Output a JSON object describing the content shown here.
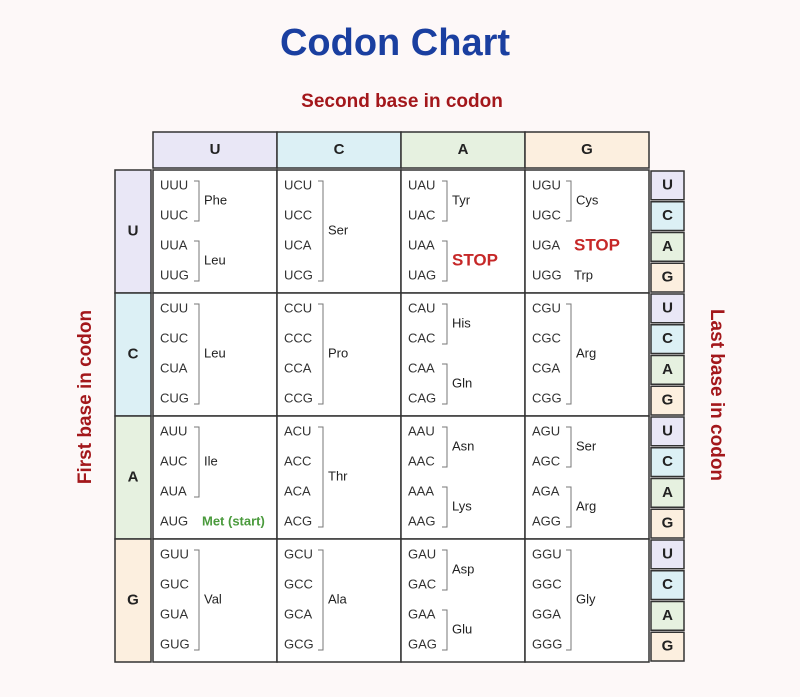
{
  "title": "Codon Chart",
  "second_base_label": "Second base in codon",
  "first_base_label": "First base in codon",
  "last_base_label": "Last base in codon",
  "columns": [
    "U",
    "C",
    "A",
    "G"
  ],
  "rows": [
    "U",
    "C",
    "A",
    "G"
  ],
  "last_bases": [
    [
      "U",
      "C",
      "A",
      "G"
    ],
    [
      "U",
      "C",
      "A",
      "G"
    ],
    [
      "U",
      "C",
      "A",
      "G"
    ],
    [
      "U",
      "C",
      "A",
      "G"
    ]
  ],
  "cells": [
    [
      [
        {
          "label": "Phe",
          "codons": [
            "UUU",
            "UUC"
          ]
        },
        {
          "label": "Leu",
          "codons": [
            "UUA",
            "UUG"
          ]
        }
      ],
      [
        {
          "label": "Ser",
          "codons": [
            "UCU",
            "UCC",
            "UCA",
            "UCG"
          ]
        }
      ],
      [
        {
          "label": "Tyr",
          "codons": [
            "UAU",
            "UAC"
          ]
        },
        {
          "label": "STOP",
          "codons": [
            "UAA",
            "UAG"
          ],
          "color": "#c62828"
        }
      ],
      [
        {
          "label": "Cys",
          "codons": [
            "UGU",
            "UGC"
          ]
        },
        {
          "label": "STOP",
          "codons": [
            "UGA"
          ],
          "color": "#c62828"
        },
        {
          "label": "Trp",
          "codons": [
            "UGG"
          ]
        }
      ]
    ],
    [
      [
        {
          "label": "Leu",
          "codons": [
            "CUU",
            "CUC",
            "CUA",
            "CUG"
          ]
        }
      ],
      [
        {
          "label": "Pro",
          "codons": [
            "CCU",
            "CCC",
            "CCA",
            "CCG"
          ]
        }
      ],
      [
        {
          "label": "His",
          "codons": [
            "CAU",
            "CAC"
          ]
        },
        {
          "label": "Gln",
          "codons": [
            "CAA",
            "CAG"
          ]
        }
      ],
      [
        {
          "label": "Arg",
          "codons": [
            "CGU",
            "CGC",
            "CGA",
            "CGG"
          ]
        }
      ]
    ],
    [
      [
        {
          "label": "Ile",
          "codons": [
            "AUU",
            "AUC",
            "AUA"
          ]
        },
        {
          "label": "Met (start)",
          "codons": [
            "AUG"
          ],
          "color": "#4a9a3c"
        }
      ],
      [
        {
          "label": "Thr",
          "codons": [
            "ACU",
            "ACC",
            "ACA",
            "ACG"
          ]
        }
      ],
      [
        {
          "label": "Asn",
          "codons": [
            "AAU",
            "AAC"
          ]
        },
        {
          "label": "Lys",
          "codons": [
            "AAA",
            "AAG"
          ]
        }
      ],
      [
        {
          "label": "Ser",
          "codons": [
            "AGU",
            "AGC"
          ]
        },
        {
          "label": "Arg",
          "codons": [
            "AGA",
            "AGG"
          ]
        }
      ]
    ],
    [
      [
        {
          "label": "Val",
          "codons": [
            "GUU",
            "GUC",
            "GUA",
            "GUG"
          ]
        }
      ],
      [
        {
          "label": "Ala",
          "codons": [
            "GCU",
            "GCC",
            "GCA",
            "GCG"
          ]
        }
      ],
      [
        {
          "label": "Asp",
          "codons": [
            "GAU",
            "GAC"
          ]
        },
        {
          "label": "Glu",
          "codons": [
            "GAA",
            "GAG"
          ]
        }
      ],
      [
        {
          "label": "Gly",
          "codons": [
            "GGU",
            "GGC",
            "GGA",
            "GGG"
          ]
        }
      ]
    ]
  ]
}
